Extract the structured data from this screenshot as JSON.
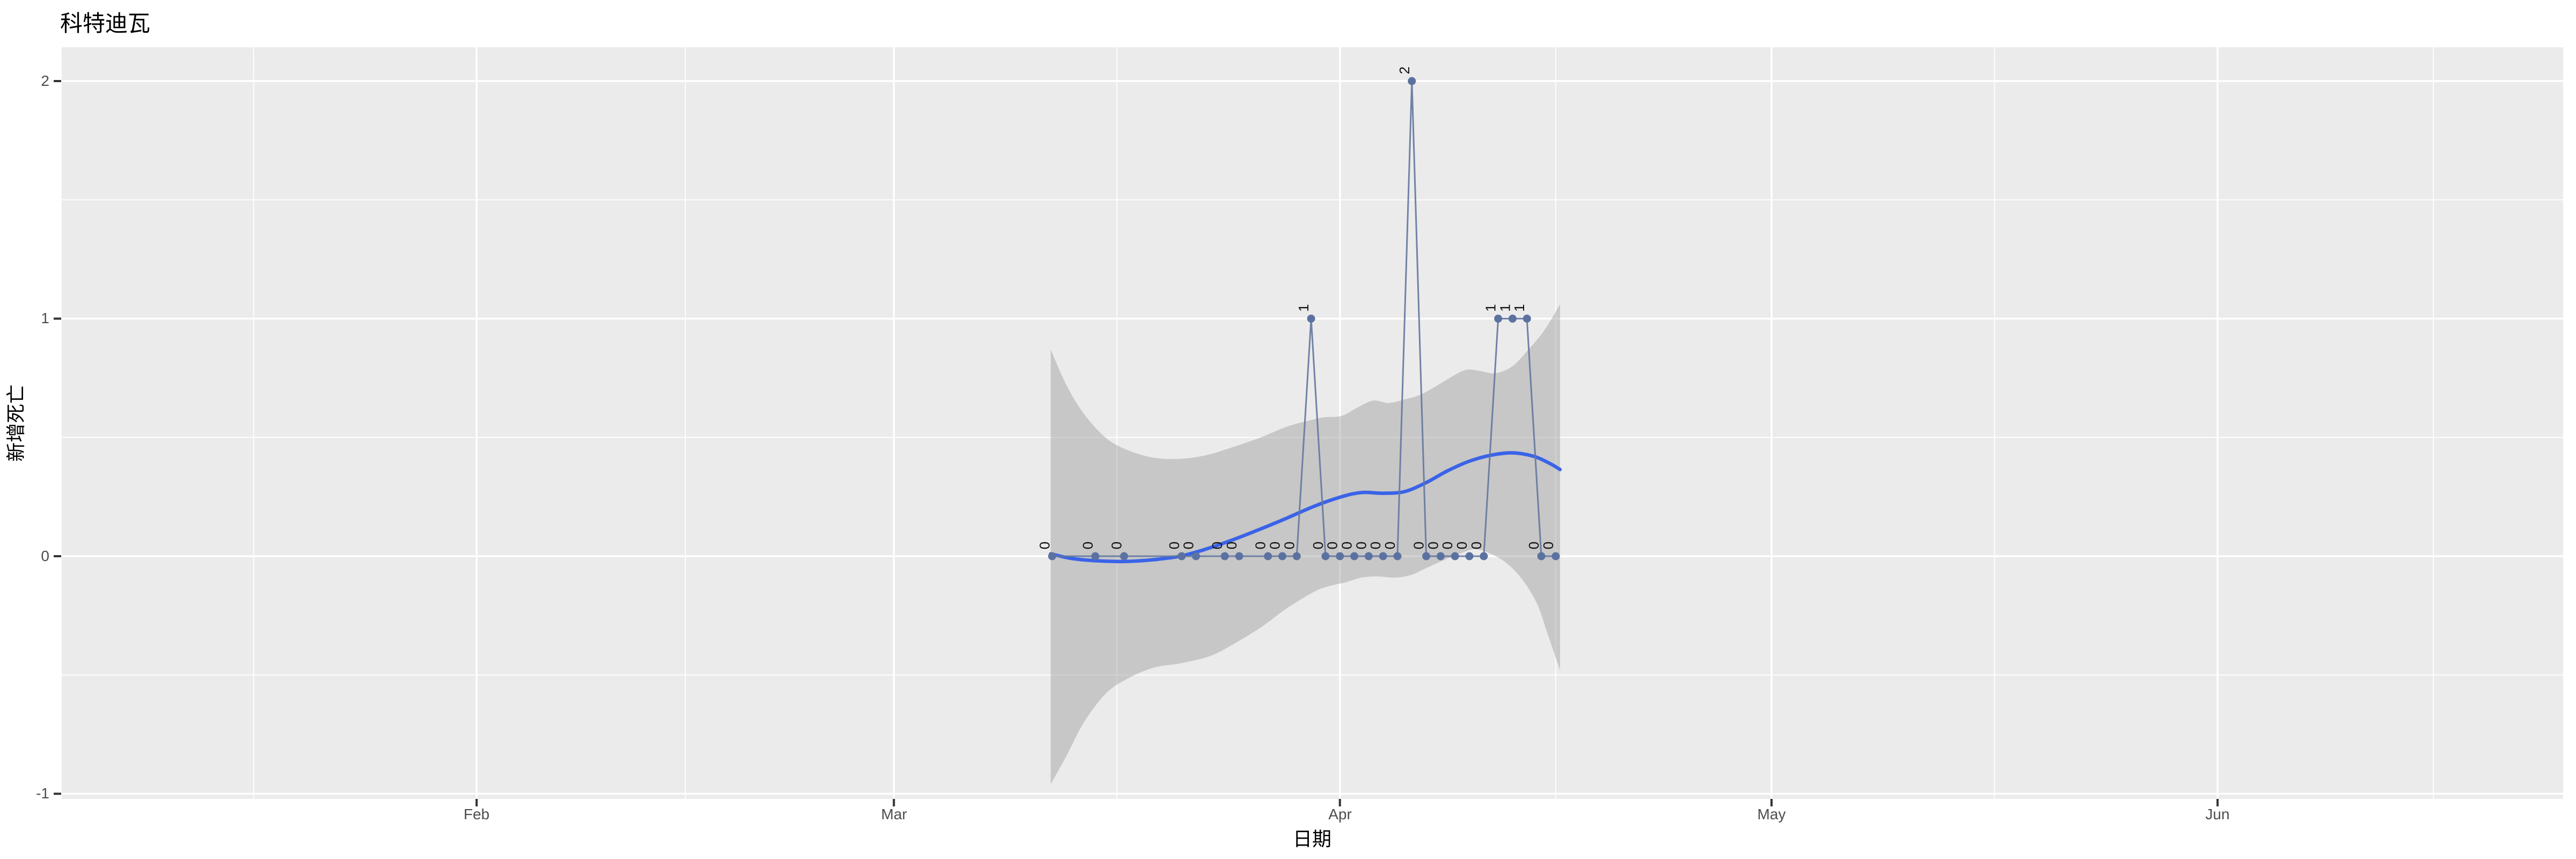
{
  "chart_data": {
    "type": "line",
    "title": "科特迪瓦",
    "xlabel": "日期",
    "ylabel": "新增死亡",
    "legend": "none",
    "grid": "on",
    "x_axis": {
      "ticks": [
        {
          "date": "2020-02-01",
          "label": "Feb"
        },
        {
          "date": "2020-03-01",
          "label": "Mar"
        },
        {
          "date": "2020-04-01",
          "label": "Apr"
        },
        {
          "date": "2020-05-01",
          "label": "May"
        },
        {
          "date": "2020-06-01",
          "label": "Jun"
        }
      ],
      "visible_range": [
        "2020-01-03",
        "2020-06-25"
      ]
    },
    "y_axis": {
      "ticks": [
        {
          "value": 2,
          "label": "2"
        },
        {
          "value": 1,
          "label": "1"
        },
        {
          "value": 0,
          "label": "0"
        },
        {
          "value": -1,
          "label": "-1"
        }
      ],
      "minor": [
        1.5,
        0.5,
        -0.5
      ],
      "lim": [
        -1.02,
        2.14
      ]
    },
    "points": [
      {
        "date": "2020-03-12",
        "value": 0,
        "label": "0"
      },
      {
        "date": "2020-03-15",
        "value": 0,
        "label": "0"
      },
      {
        "date": "2020-03-17",
        "value": 0,
        "label": "0"
      },
      {
        "date": "2020-03-21",
        "value": 0,
        "label": "0"
      },
      {
        "date": "2020-03-22",
        "value": 0,
        "label": "0"
      },
      {
        "date": "2020-03-24",
        "value": 0,
        "label": "0"
      },
      {
        "date": "2020-03-25",
        "value": 0,
        "label": "0"
      },
      {
        "date": "2020-03-27",
        "value": 0,
        "label": "0"
      },
      {
        "date": "2020-03-28",
        "value": 0,
        "label": "0"
      },
      {
        "date": "2020-03-29",
        "value": 0,
        "label": "0"
      },
      {
        "date": "2020-03-30",
        "value": 1,
        "label": "1"
      },
      {
        "date": "2020-03-31",
        "value": 0,
        "label": "0"
      },
      {
        "date": "2020-04-01",
        "value": 0,
        "label": "0"
      },
      {
        "date": "2020-04-02",
        "value": 0,
        "label": "0"
      },
      {
        "date": "2020-04-03",
        "value": 0,
        "label": "0"
      },
      {
        "date": "2020-04-04",
        "value": 0,
        "label": "0"
      },
      {
        "date": "2020-04-05",
        "value": 0,
        "label": "0"
      },
      {
        "date": "2020-04-06",
        "value": 2,
        "label": "2"
      },
      {
        "date": "2020-04-07",
        "value": 0,
        "label": "0"
      },
      {
        "date": "2020-04-08",
        "value": 0,
        "label": "0"
      },
      {
        "date": "2020-04-09",
        "value": 0,
        "label": "0"
      },
      {
        "date": "2020-04-10",
        "value": 0,
        "label": "0"
      },
      {
        "date": "2020-04-11",
        "value": 0,
        "label": "0"
      },
      {
        "date": "2020-04-12",
        "value": 1,
        "label": "1"
      },
      {
        "date": "2020-04-13",
        "value": 1,
        "label": "1"
      },
      {
        "date": "2020-04-14",
        "value": 1,
        "label": "1"
      },
      {
        "date": "2020-04-15",
        "value": 0,
        "label": "0"
      },
      {
        "date": "2020-04-16",
        "value": 0,
        "label": "0"
      }
    ],
    "smooth": [
      [
        70.9,
        0.01
      ],
      [
        72.4,
        -0.01
      ],
      [
        74.3,
        -0.02
      ],
      [
        76.1,
        -0.022
      ],
      [
        78.0,
        -0.015
      ],
      [
        79.9,
        0.0
      ],
      [
        81.7,
        0.03
      ],
      [
        83.6,
        0.07
      ],
      [
        85.5,
        0.115
      ],
      [
        87.3,
        0.16
      ],
      [
        89.2,
        0.21
      ],
      [
        91.1,
        0.25
      ],
      [
        92.5,
        0.268
      ],
      [
        94.0,
        0.265
      ],
      [
        95.5,
        0.272
      ],
      [
        97.0,
        0.31
      ],
      [
        98.5,
        0.36
      ],
      [
        100.0,
        0.4
      ],
      [
        101.5,
        0.425
      ],
      [
        103.0,
        0.435
      ],
      [
        104.5,
        0.42
      ],
      [
        105.6,
        0.39
      ],
      [
        106.3,
        0.365
      ]
    ],
    "ribbon": {
      "upper": [
        [
          70.9,
          0.87
        ],
        [
          72.0,
          0.72
        ],
        [
          73.2,
          0.6
        ],
        [
          74.7,
          0.5
        ],
        [
          76.1,
          0.45
        ],
        [
          78.0,
          0.415
        ],
        [
          79.9,
          0.41
        ],
        [
          81.7,
          0.425
        ],
        [
          83.6,
          0.46
        ],
        [
          85.5,
          0.5
        ],
        [
          87.3,
          0.545
        ],
        [
          88.8,
          0.57
        ],
        [
          89.9,
          0.585
        ],
        [
          91.1,
          0.59
        ],
        [
          92.2,
          0.625
        ],
        [
          93.3,
          0.655
        ],
        [
          94.4,
          0.645
        ],
        [
          95.5,
          0.66
        ],
        [
          96.6,
          0.68
        ],
        [
          97.8,
          0.72
        ],
        [
          98.9,
          0.76
        ],
        [
          99.8,
          0.785
        ],
        [
          100.7,
          0.78
        ],
        [
          101.8,
          0.77
        ],
        [
          103.0,
          0.8
        ],
        [
          104.1,
          0.87
        ],
        [
          105.2,
          0.95
        ],
        [
          106.3,
          1.06
        ]
      ],
      "lower": [
        [
          70.9,
          -0.96
        ],
        [
          72.0,
          -0.84
        ],
        [
          73.2,
          -0.7
        ],
        [
          74.7,
          -0.58
        ],
        [
          76.1,
          -0.52
        ],
        [
          78.0,
          -0.47
        ],
        [
          80.0,
          -0.45
        ],
        [
          82.0,
          -0.42
        ],
        [
          83.6,
          -0.37
        ],
        [
          85.5,
          -0.3
        ],
        [
          87.3,
          -0.22
        ],
        [
          89.2,
          -0.15
        ],
        [
          90.3,
          -0.125
        ],
        [
          91.4,
          -0.11
        ],
        [
          92.5,
          -0.09
        ],
        [
          93.6,
          -0.085
        ],
        [
          94.8,
          -0.09
        ],
        [
          95.9,
          -0.08
        ],
        [
          97.0,
          -0.05
        ],
        [
          98.1,
          -0.02
        ],
        [
          99.3,
          0.01
        ],
        [
          100.4,
          0.03
        ],
        [
          101.5,
          0.01
        ],
        [
          102.6,
          -0.03
        ],
        [
          103.7,
          -0.1
        ],
        [
          104.7,
          -0.2
        ],
        [
          105.4,
          -0.32
        ],
        [
          106.3,
          -0.48
        ]
      ]
    },
    "colors": {
      "panel": "#EBEBEB",
      "grid": "#FFFFFF",
      "ribbon": "rgba(150,150,150,0.42)",
      "smooth": "#3A63E8",
      "series": "#63779E",
      "point": "#5B72A0",
      "label": "#111111",
      "tick_mark": "#333333",
      "tick_text": "#4D4D4D",
      "title_text": "#000000"
    }
  }
}
